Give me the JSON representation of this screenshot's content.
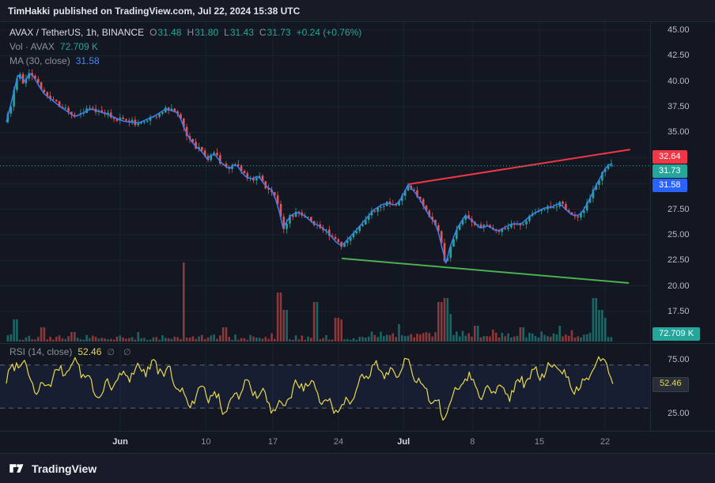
{
  "header": {
    "author": "TimHakki",
    "rest": "published on TradingView.com, Jul 22, 2024 15:38 UTC"
  },
  "legend": {
    "symbol": {
      "title": "AVAX / TetherUS, 1h, BINANCE",
      "o_label": "O",
      "o": "31.48",
      "h_label": "H",
      "h": "31.80",
      "l_label": "L",
      "l": "31.43",
      "c_label": "C",
      "c": "31.73",
      "change": "+0.24 (+0.76%)"
    },
    "volume": {
      "label": "Vol · AVAX",
      "value": "72.709 K"
    },
    "ma": {
      "label": "MA (30, close)",
      "value": "31.58"
    }
  },
  "rsi_legend": {
    "label": "RSI (14, close)",
    "value": "52.46",
    "icons": "∅ ∅"
  },
  "footer": {
    "brand": "TradingView"
  },
  "colors": {
    "bg": "#131722",
    "grid": "#1c2231",
    "up": "#26a69a",
    "down": "#ef5350",
    "ma": "#3f7df6",
    "rsi": "#e8d84a",
    "trend_red": "#f23645",
    "trend_green": "#4caf50",
    "badge_blue": "#2962ff",
    "axis_text": "#b7bcc8"
  },
  "chart_data": {
    "type": "candlestick",
    "title": "AVAX / TetherUS, 1h, BINANCE",
    "ohlc": {
      "open": 31.48,
      "high": 31.8,
      "low": 31.43,
      "close": 31.73,
      "change": 0.24,
      "change_pct": 0.76
    },
    "last_price": 31.73,
    "ma": {
      "name": "MA",
      "length": 30,
      "source": "close",
      "value": 31.58
    },
    "volume_current": "72.709 K",
    "price_scale_labels": [
      45.0,
      42.5,
      40.0,
      37.5,
      35.0,
      27.5,
      25.0,
      22.5,
      20.0,
      17.5
    ],
    "price_scale_range": {
      "min": 17.5,
      "max": 45.0
    },
    "axis_badges": [
      {
        "text": "32.64",
        "bg": "#f23645",
        "price": 32.64
      },
      {
        "text": "31.73",
        "bg": "#26a69a",
        "price": 31.73
      },
      {
        "text": "31.58",
        "bg": "#2962ff",
        "price": 31.58
      }
    ],
    "time_scale": [
      {
        "label": "Jun",
        "f": 0.177,
        "major": true
      },
      {
        "label": "10",
        "f": 0.31,
        "major": false
      },
      {
        "label": "17",
        "f": 0.414,
        "major": false
      },
      {
        "label": "24",
        "f": 0.516,
        "major": false
      },
      {
        "label": "Jul",
        "f": 0.617,
        "major": true
      },
      {
        "label": "8",
        "f": 0.724,
        "major": false
      },
      {
        "label": "15",
        "f": 0.828,
        "major": false
      },
      {
        "label": "22",
        "f": 0.93,
        "major": false
      }
    ],
    "price_keypoints": [
      [
        0.0,
        36.0
      ],
      [
        0.01,
        38.5
      ],
      [
        0.02,
        41.2
      ],
      [
        0.027,
        39.6
      ],
      [
        0.037,
        41.0
      ],
      [
        0.058,
        38.8
      ],
      [
        0.082,
        37.6
      ],
      [
        0.107,
        36.5
      ],
      [
        0.131,
        37.3
      ],
      [
        0.156,
        36.8
      ],
      [
        0.181,
        36.1
      ],
      [
        0.205,
        35.9
      ],
      [
        0.23,
        36.6
      ],
      [
        0.248,
        37.3
      ],
      [
        0.267,
        36.9
      ],
      [
        0.279,
        35.0
      ],
      [
        0.291,
        33.8
      ],
      [
        0.303,
        33.2
      ],
      [
        0.312,
        32.4
      ],
      [
        0.322,
        33.0
      ],
      [
        0.334,
        32.0
      ],
      [
        0.346,
        31.4
      ],
      [
        0.356,
        32.0
      ],
      [
        0.369,
        30.8
      ],
      [
        0.381,
        30.4
      ],
      [
        0.391,
        30.8
      ],
      [
        0.402,
        29.8
      ],
      [
        0.414,
        29.3
      ],
      [
        0.423,
        27.5
      ],
      [
        0.43,
        25.6
      ],
      [
        0.44,
        26.8
      ],
      [
        0.451,
        27.2
      ],
      [
        0.463,
        26.9
      ],
      [
        0.475,
        26.2
      ],
      [
        0.488,
        25.8
      ],
      [
        0.5,
        25.2
      ],
      [
        0.512,
        24.3
      ],
      [
        0.521,
        23.9
      ],
      [
        0.531,
        24.6
      ],
      [
        0.543,
        25.4
      ],
      [
        0.558,
        26.5
      ],
      [
        0.57,
        27.4
      ],
      [
        0.582,
        27.9
      ],
      [
        0.595,
        28.1
      ],
      [
        0.604,
        27.8
      ],
      [
        0.614,
        28.6
      ],
      [
        0.624,
        29.9
      ],
      [
        0.634,
        29.2
      ],
      [
        0.644,
        28.3
      ],
      [
        0.656,
        26.9
      ],
      [
        0.668,
        26.0
      ],
      [
        0.676,
        24.0
      ],
      [
        0.682,
        22.0
      ],
      [
        0.69,
        24.0
      ],
      [
        0.7,
        25.6
      ],
      [
        0.713,
        26.9
      ],
      [
        0.725,
        26.3
      ],
      [
        0.737,
        25.6
      ],
      [
        0.749,
        25.9
      ],
      [
        0.762,
        25.3
      ],
      [
        0.774,
        25.7
      ],
      [
        0.786,
        26.1
      ],
      [
        0.799,
        26.0
      ],
      [
        0.811,
        26.7
      ],
      [
        0.823,
        27.2
      ],
      [
        0.835,
        27.6
      ],
      [
        0.848,
        27.7
      ],
      [
        0.858,
        28.1
      ],
      [
        0.867,
        27.6
      ],
      [
        0.877,
        27.0
      ],
      [
        0.887,
        26.8
      ],
      [
        0.897,
        27.4
      ],
      [
        0.907,
        28.6
      ],
      [
        0.916,
        29.8
      ],
      [
        0.926,
        31.0
      ],
      [
        0.934,
        31.9
      ],
      [
        0.942,
        31.73
      ]
    ],
    "trendlines": [
      {
        "name": "resistance-trendline",
        "color": "#f23645",
        "points": [
          [
            0.625,
            29.94
          ],
          [
            0.969,
            33.33
          ]
        ]
      },
      {
        "name": "support-trendline",
        "color": "#4caf50",
        "points": [
          [
            0.521,
            22.68
          ],
          [
            0.967,
            20.28
          ]
        ]
      }
    ],
    "volume_spikes": [
      [
        0.015,
        0.28
      ],
      [
        0.055,
        0.18
      ],
      [
        0.105,
        0.12
      ],
      [
        0.205,
        0.12
      ],
      [
        0.275,
        1.0
      ],
      [
        0.34,
        0.18
      ],
      [
        0.425,
        0.62
      ],
      [
        0.432,
        0.4
      ],
      [
        0.48,
        0.5
      ],
      [
        0.512,
        0.3
      ],
      [
        0.52,
        0.28
      ],
      [
        0.61,
        0.22
      ],
      [
        0.675,
        0.5
      ],
      [
        0.682,
        0.55
      ],
      [
        0.69,
        0.35
      ],
      [
        0.73,
        0.2
      ],
      [
        0.8,
        0.18
      ],
      [
        0.86,
        0.2
      ],
      [
        0.915,
        0.55
      ],
      [
        0.922,
        0.4
      ],
      [
        0.93,
        0.3
      ]
    ],
    "rsi": {
      "length": 14,
      "source": "close",
      "value": 52.46,
      "upper_band": 70,
      "lower_band": 30,
      "scale_labels": [
        75.0,
        25.0
      ],
      "keypoints": [
        [
          0.0,
          55
        ],
        [
          0.02,
          78
        ],
        [
          0.05,
          45
        ],
        [
          0.08,
          62
        ],
        [
          0.11,
          72
        ],
        [
          0.14,
          42
        ],
        [
          0.17,
          55
        ],
        [
          0.2,
          65
        ],
        [
          0.23,
          70
        ],
        [
          0.26,
          58
        ],
        [
          0.28,
          35
        ],
        [
          0.31,
          46
        ],
        [
          0.34,
          30
        ],
        [
          0.37,
          52
        ],
        [
          0.4,
          40
        ],
        [
          0.42,
          25
        ],
        [
          0.44,
          42
        ],
        [
          0.46,
          55
        ],
        [
          0.48,
          45
        ],
        [
          0.5,
          35
        ],
        [
          0.52,
          28
        ],
        [
          0.54,
          46
        ],
        [
          0.56,
          62
        ],
        [
          0.58,
          68
        ],
        [
          0.6,
          60
        ],
        [
          0.62,
          72
        ],
        [
          0.64,
          55
        ],
        [
          0.66,
          38
        ],
        [
          0.68,
          22
        ],
        [
          0.7,
          48
        ],
        [
          0.71,
          60
        ],
        [
          0.73,
          52
        ],
        [
          0.74,
          40
        ],
        [
          0.76,
          52
        ],
        [
          0.78,
          44
        ],
        [
          0.8,
          56
        ],
        [
          0.82,
          60
        ],
        [
          0.84,
          66
        ],
        [
          0.86,
          70
        ],
        [
          0.87,
          55
        ],
        [
          0.89,
          46
        ],
        [
          0.91,
          64
        ],
        [
          0.93,
          78
        ],
        [
          0.942,
          52.46
        ]
      ]
    }
  }
}
